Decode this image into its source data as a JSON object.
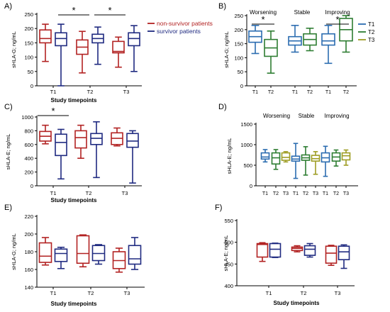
{
  "colors": {
    "red": "#b22222",
    "blue": "#1f2a80",
    "t1": "#2b6cb0",
    "t2": "#2e7d32",
    "t3": "#9e9d24",
    "axis": "#000000"
  },
  "legend_A": {
    "nonsurvivor": "non-survivor patients",
    "survivor": "survivor patients"
  },
  "legend_B": [
    "T1",
    "T2",
    "T3"
  ],
  "chart_data": [
    {
      "panel": "A)",
      "type": "box",
      "ylabel": "sHLA-G; ng/mL",
      "xlabel": "Study timepoints",
      "ylim": [
        0,
        250
      ],
      "yticks": [
        "0",
        "50",
        "100",
        "150",
        "200",
        "250"
      ],
      "categories": [
        "T1",
        "T2",
        "T3"
      ],
      "series": [
        {
          "name": "non-survivor patients",
          "color": "red",
          "boxes": [
            {
              "min": 85,
              "q1": 150,
              "median": 165,
              "q3": 195,
              "max": 215
            },
            {
              "min": 45,
              "q1": 110,
              "median": 135,
              "q3": 160,
              "max": 190
            },
            {
              "min": 65,
              "q1": 115,
              "median": 120,
              "q3": 155,
              "max": 170
            }
          ]
        },
        {
          "name": "survivor patients",
          "color": "blue",
          "boxes": [
            {
              "min": 0,
              "q1": 140,
              "median": 165,
              "q3": 185,
              "max": 215
            },
            {
              "min": 75,
              "q1": 150,
              "median": 165,
              "q3": 180,
              "max": 205
            },
            {
              "min": 50,
              "q1": 140,
              "median": 165,
              "q3": 185,
              "max": 210
            }
          ]
        }
      ],
      "significance": [
        {
          "category": 1,
          "label": "*"
        },
        {
          "category": 2,
          "label": "*"
        }
      ]
    },
    {
      "panel": "B)",
      "type": "box",
      "ylabel": "sHLA-G; ng/mL",
      "ylim": [
        0,
        250
      ],
      "yticks": [
        "0",
        "50",
        "100",
        "150",
        "200",
        "250"
      ],
      "groups": [
        "Worsening",
        "Stable",
        "Improving"
      ],
      "boxes": [
        {
          "label": "T1",
          "color": "t1",
          "min": 115,
          "q1": 155,
          "median": 175,
          "q3": 195,
          "max": 215
        },
        {
          "label": "T2",
          "color": "t2",
          "min": 45,
          "q1": 105,
          "median": 135,
          "q3": 165,
          "max": 195
        },
        {
          "label": "T1",
          "color": "t1",
          "min": 120,
          "q1": 145,
          "median": 160,
          "q3": 175,
          "max": 215
        },
        {
          "label": "T2",
          "color": "t2",
          "min": 125,
          "q1": 145,
          "median": 165,
          "q3": 185,
          "max": 205
        },
        {
          "label": "T1",
          "color": "t1",
          "min": 80,
          "q1": 145,
          "median": 160,
          "q3": 185,
          "max": 215
        },
        {
          "label": "T2",
          "color": "t2",
          "min": 120,
          "q1": 160,
          "median": 200,
          "q3": 240,
          "max": 250
        }
      ],
      "significance": [
        {
          "boxes": [
            0,
            1
          ],
          "label": "*"
        },
        {
          "boxes": [
            4,
            5
          ],
          "label": "*"
        }
      ]
    },
    {
      "panel": "C)",
      "type": "box",
      "ylabel": "sHLA-E; ng/mL",
      "xlabel": "Study timepoints",
      "ylim": [
        0,
        1000
      ],
      "yticks": [
        "0",
        "200",
        "400",
        "600",
        "800",
        "1000"
      ],
      "categories": [
        "T1",
        "T2",
        "T3"
      ],
      "series": [
        {
          "name": "non-survivor patients",
          "color": "red",
          "boxes": [
            {
              "min": 610,
              "q1": 650,
              "median": 720,
              "q3": 790,
              "max": 880
            },
            {
              "min": 400,
              "q1": 550,
              "median": 700,
              "q3": 800,
              "max": 880
            },
            {
              "min": 580,
              "q1": 600,
              "median": 690,
              "q3": 770,
              "max": 840
            }
          ]
        },
        {
          "name": "survivor patients",
          "color": "blue",
          "boxes": [
            {
              "min": 100,
              "q1": 440,
              "median": 630,
              "q3": 750,
              "max": 820
            },
            {
              "min": 120,
              "q1": 600,
              "median": 690,
              "q3": 760,
              "max": 930
            },
            {
              "min": 40,
              "q1": 560,
              "median": 650,
              "q3": 760,
              "max": 800
            }
          ]
        }
      ],
      "significance": [
        {
          "category": 0,
          "label": "*"
        }
      ]
    },
    {
      "panel": "D)",
      "type": "box",
      "ylabel": "sHLA-E; ng/mL",
      "ylim": [
        0,
        1500
      ],
      "yticks": [
        "0",
        "500",
        "1000",
        "1500"
      ],
      "groups": [
        "Worsening",
        "Stable",
        "Improving"
      ],
      "boxes": [
        {
          "label": "T1",
          "color": "t1",
          "min": 580,
          "q1": 650,
          "median": 700,
          "q3": 800,
          "max": 880
        },
        {
          "label": "T2",
          "color": "t2",
          "min": 400,
          "q1": 530,
          "median": 680,
          "q3": 800,
          "max": 880
        },
        {
          "label": "T3",
          "color": "t3",
          "min": 580,
          "q1": 620,
          "median": 690,
          "q3": 800,
          "max": 830
        },
        {
          "label": "T1",
          "color": "t1",
          "min": 180,
          "q1": 600,
          "median": 650,
          "q3": 720,
          "max": 1030
        },
        {
          "label": "T2",
          "color": "t2",
          "min": 260,
          "q1": 620,
          "median": 680,
          "q3": 750,
          "max": 950
        },
        {
          "label": "T3",
          "color": "t3",
          "min": 280,
          "q1": 600,
          "median": 660,
          "q3": 740,
          "max": 830
        },
        {
          "label": "T1",
          "color": "t1",
          "min": 230,
          "q1": 580,
          "median": 680,
          "q3": 800,
          "max": 960
        },
        {
          "label": "T2",
          "color": "t2",
          "min": 480,
          "q1": 600,
          "median": 700,
          "q3": 800,
          "max": 870
        },
        {
          "label": "T3",
          "color": "t3",
          "min": 500,
          "q1": 630,
          "median": 730,
          "q3": 800,
          "max": 870
        }
      ]
    },
    {
      "panel": "E)",
      "type": "box",
      "ylabel": "sHLA-G; ng/mL",
      "xlabel": "Study timepoints",
      "ylim": [
        140,
        220
      ],
      "yticks": [
        "140",
        "160",
        "180",
        "200",
        "220"
      ],
      "categories": [
        "T1",
        "T2",
        "T3"
      ],
      "series": [
        {
          "name": "non-survivor patients",
          "color": "red",
          "boxes": [
            {
              "min": 165,
              "q1": 168,
              "median": 175,
              "q3": 190,
              "max": 196
            },
            {
              "min": 163,
              "q1": 167,
              "median": 178,
              "q3": 198,
              "max": 199
            },
            {
              "min": 157,
              "q1": 161,
              "median": 170,
              "q3": 180,
              "max": 184
            }
          ]
        },
        {
          "name": "survivor patients",
          "color": "blue",
          "boxes": [
            {
              "min": 161,
              "q1": 169,
              "median": 178,
              "q3": 183,
              "max": 185
            },
            {
              "min": 166,
              "q1": 170,
              "median": 178,
              "q3": 187,
              "max": 188
            },
            {
              "min": 160,
              "q1": 166,
              "median": 172,
              "q3": 187,
              "max": 196
            }
          ]
        }
      ]
    },
    {
      "panel": "F)",
      "type": "box",
      "ylabel": "sHLA-E; ng/mL",
      "xlabel": "Study timepoints",
      "ylim": [
        400,
        550
      ],
      "yticks": [
        "400",
        "450",
        "500",
        "550"
      ],
      "categories": [
        "T1",
        "T2",
        "T3"
      ],
      "series": [
        {
          "name": "non-survivor patients",
          "color": "red",
          "boxes": [
            {
              "min": 456,
              "q1": 466,
              "median": 495,
              "q3": 497,
              "max": 499
            },
            {
              "min": 478,
              "q1": 481,
              "median": 486,
              "q3": 489,
              "max": 492
            },
            {
              "min": 447,
              "q1": 452,
              "median": 475,
              "q3": 491,
              "max": 493
            }
          ]
        },
        {
          "name": "survivor patients",
          "color": "blue",
          "boxes": [
            {
              "min": 465,
              "q1": 466,
              "median": 484,
              "q3": 497,
              "max": 498
            },
            {
              "min": 466,
              "q1": 470,
              "median": 484,
              "q3": 492,
              "max": 497
            },
            {
              "min": 440,
              "q1": 460,
              "median": 478,
              "q3": 491,
              "max": 494
            }
          ]
        }
      ]
    }
  ]
}
